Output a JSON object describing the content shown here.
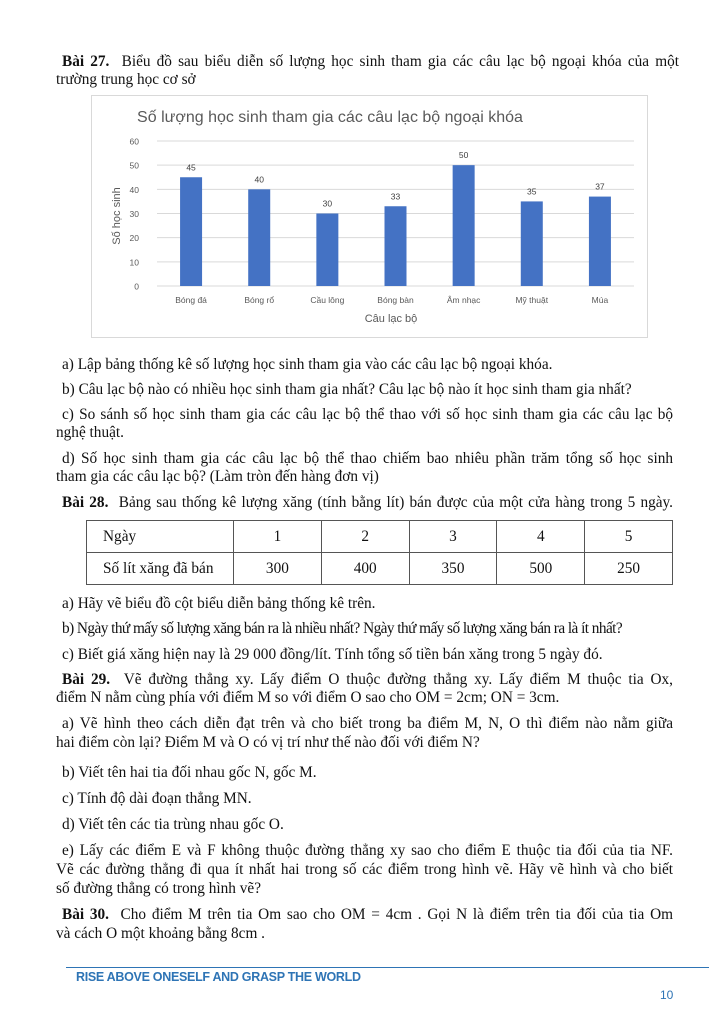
{
  "bai27": {
    "label": "Bài 27.",
    "intro_1": "Biểu đồ sau biểu diễn số lượng học sinh tham gia các câu lạc bộ ngoại khóa của một",
    "intro_2": "trường trung học cơ sở",
    "a": "a) Lập bảng thống kê số lượng học sinh tham gia vào các câu lạc bộ ngoại khóa.",
    "b": "b) Câu lạc bộ nào có nhiều học sinh tham gia nhất? Câu lạc bộ nào ít học sinh tham gia nhất?",
    "c_1": "c) So sánh số học sinh tham gia các câu lạc bộ thể thao với số học sinh tham gia các câu lạc bộ",
    "c_2": "nghệ thuật.",
    "d_1": "d) Số học sinh tham gia các câu lạc bộ thể thao chiếm bao nhiêu phần trăm tổng số học sinh",
    "d_2": "tham gia các câu lạc bộ? (Làm tròn đến hàng đơn vị)"
  },
  "chart_data": {
    "type": "bar",
    "title": "Số lượng học sinh tham gia các câu lạc bộ ngoại khóa",
    "xlabel": "Câu lạc bộ",
    "ylabel": "Số học sinh",
    "categories": [
      "Bóng đá",
      "Bóng rổ",
      "Cầu lông",
      "Bóng bàn",
      "Âm nhạc",
      "Mỹ thuật",
      "Múa"
    ],
    "values": [
      45,
      40,
      30,
      33,
      50,
      35,
      37
    ],
    "ylim": [
      0,
      60
    ],
    "yticks": [
      0,
      10,
      20,
      30,
      40,
      50,
      60
    ],
    "grid": true,
    "data_labels": true,
    "bar_color": "#4472c4"
  },
  "bai28": {
    "label": "Bài 28.",
    "intro": "Bảng sau thống kê lượng xăng (tính bằng lít) bán được của một cửa hàng trong 5 ngày.",
    "table": {
      "row1_header": "Ngày",
      "days": [
        "1",
        "2",
        "3",
        "4",
        "5"
      ],
      "row2_header": "Số lít xăng đã bán",
      "liters": [
        "300",
        "400",
        "350",
        "500",
        "250"
      ]
    },
    "a": "a) Hãy vẽ biểu đồ cột biểu diễn bảng thống kê trên.",
    "b": "b) Ngày thứ mấy số lượng xăng bán ra là nhiều nhất? Ngày thứ mấy số lượng xăng bán ra là ít nhất?",
    "c": "c) Biết giá xăng hiện nay là 29 000 đồng/lít. Tính tổng số tiền bán xăng trong 5 ngày đó."
  },
  "bai29": {
    "label": "Bài 29.",
    "intro_1": "Vẽ đường thẳng xy. Lấy điểm O thuộc đường thẳng xy. Lấy điểm M thuộc tia Ox,",
    "intro_2": "điểm N nằm cùng phía với điểm M so với điểm O sao cho  OM = 2cm; ON = 3cm.",
    "a_1": "a) Vẽ hình theo cách diễn đạt trên và cho biết trong ba điểm M, N, O thì điểm nào nằm giữa",
    "a_2": "hai điểm còn lại? Điểm M và O có vị trí như thế nào đối với điểm N?",
    "b": "b) Viết tên hai tia đối nhau gốc N, gốc M.",
    "c": "c) Tính độ dài đoạn thẳng MN.",
    "d": "d) Viết tên các tia trùng nhau gốc O.",
    "e_1": "e) Lấy các điểm E và F không thuộc đường thẳng xy sao cho điểm E thuộc tia đối của tia NF.",
    "e_2": "Vẽ các đường thẳng đi qua ít nhất hai trong số các điểm trong hình vẽ. Hãy vẽ hình và cho biết",
    "e_3": "số đường thẳng có trong hình vẽ?"
  },
  "bai30": {
    "label": "Bài 30.",
    "intro_1": "Cho điểm M trên tia Om sao cho  OM = 4cm . Gọi N là điểm trên tia đối của tia Om",
    "intro_2": "và cách O một khoảng bằng 8cm ."
  },
  "footer": {
    "slogan": "RISE ABOVE ONESELF AND GRASP THE WORLD",
    "page_number": "10",
    "color": "#2e74b5"
  }
}
